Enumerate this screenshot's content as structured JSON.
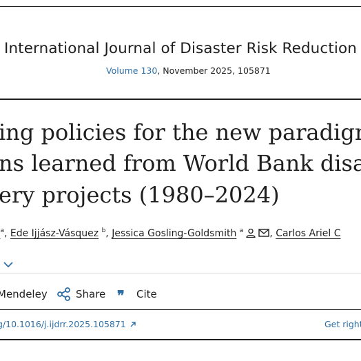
{
  "journal": {
    "name": "International Journal of Disaster Risk Reduction",
    "volume_link": "Volume 130",
    "issue_rest": ", November 2025, 105871"
  },
  "article": {
    "title_lines": [
      "ing policies for the new paradigm",
      "ns learned from World Bank disa",
      "ery projects (1980–2024)"
    ]
  },
  "authors": [
    {
      "prefix": "",
      "name": "",
      "sup": "a"
    },
    {
      "name": "Ede Ijjász-Vásquez",
      "sup": "b"
    },
    {
      "name": "Jessica Gosling-Goldsmith",
      "sup": "a"
    },
    {
      "name": "Carlos Ariel C"
    }
  ],
  "actions": {
    "mendeley": "Mendeley",
    "share": "Share",
    "cite": "Cite"
  },
  "links": {
    "doi": "g/10.1016/j.ijdrr.2025.105871",
    "rights": "Get right"
  },
  "colors": {
    "link": "#2e6fa6",
    "text": "#1f1f1f",
    "rule": "#1f1f1f"
  },
  "icons": {
    "person": "person-icon",
    "email": "envelope-icon",
    "chevron": "chevron-down-icon",
    "share": "share-icon",
    "cite": "quote-icon",
    "external": "arrow-up-right-icon"
  }
}
